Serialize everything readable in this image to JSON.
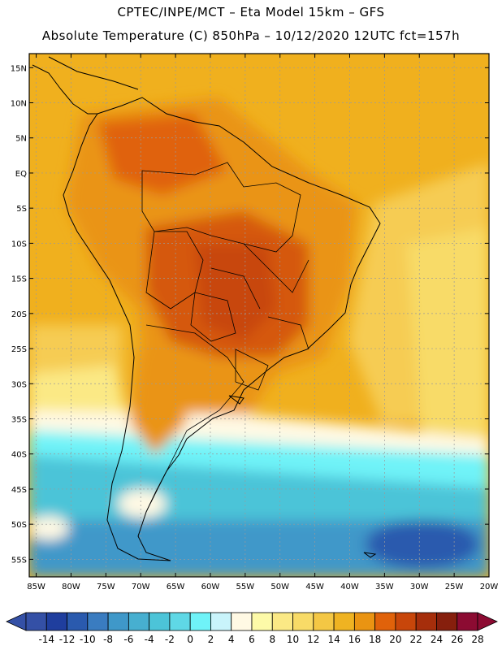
{
  "title": {
    "line1": "CPTEC/INPE/MCT –  Eta Model 15km – GFS",
    "line2": "Absolute Temperature (C) 850hPa – 10/12/2020 12UTC fct=157h"
  },
  "axes": {
    "lat_labels": [
      "15N",
      "10N",
      "5N",
      "EQ",
      "5S",
      "10S",
      "15S",
      "20S",
      "25S",
      "30S",
      "35S",
      "40S",
      "45S",
      "50S",
      "55S"
    ],
    "lat_values": [
      15,
      10,
      5,
      0,
      -5,
      -10,
      -15,
      -20,
      -25,
      -30,
      -35,
      -40,
      -45,
      -50,
      -55
    ],
    "lon_labels": [
      "85W",
      "80W",
      "75W",
      "70W",
      "65W",
      "60W",
      "55W",
      "50W",
      "45W",
      "40W",
      "35W",
      "30W",
      "25W",
      "20W"
    ],
    "lon_values": [
      -85,
      -80,
      -75,
      -70,
      -65,
      -60,
      -55,
      -50,
      -45,
      -40,
      -35,
      -30,
      -25,
      -20
    ],
    "lat_range": [
      -57.5,
      17
    ],
    "lon_range": [
      -86,
      -20
    ]
  },
  "colorbar": {
    "labels": [
      "-14",
      "-12",
      "-10",
      "-8",
      "-6",
      "-4",
      "-2",
      "0",
      "2",
      "4",
      "6",
      "8",
      "10",
      "12",
      "14",
      "16",
      "18",
      "20",
      "22",
      "24",
      "26",
      "28"
    ],
    "colors": [
      "#3450a6",
      "#1f3e9e",
      "#2a5aae",
      "#3a7cc0",
      "#3f98c9",
      "#47afd0",
      "#4cc4d8",
      "#5fd8e6",
      "#6ff3f8",
      "#c9f4fb",
      "#fff9e4",
      "#fdfaa8",
      "#fbe985",
      "#f8db67",
      "#f4c744",
      "#efb322",
      "#ea9412",
      "#e0620a",
      "#c8460a",
      "#a62e0b",
      "#861f0d",
      "#8c0b32"
    ]
  },
  "map": {
    "regions": [
      {
        "name": "ocean-northwest",
        "color": "#f0b01e"
      },
      {
        "name": "continent-north",
        "color": "#ea9412"
      },
      {
        "name": "central-brazil-hot",
        "color": "#c8460a"
      },
      {
        "name": "atlantic-east",
        "color": "#f8db67"
      },
      {
        "name": "southern-cool",
        "color": "#5fd8e6"
      },
      {
        "name": "deep-south-ocean",
        "color": "#3f98c9"
      }
    ]
  }
}
